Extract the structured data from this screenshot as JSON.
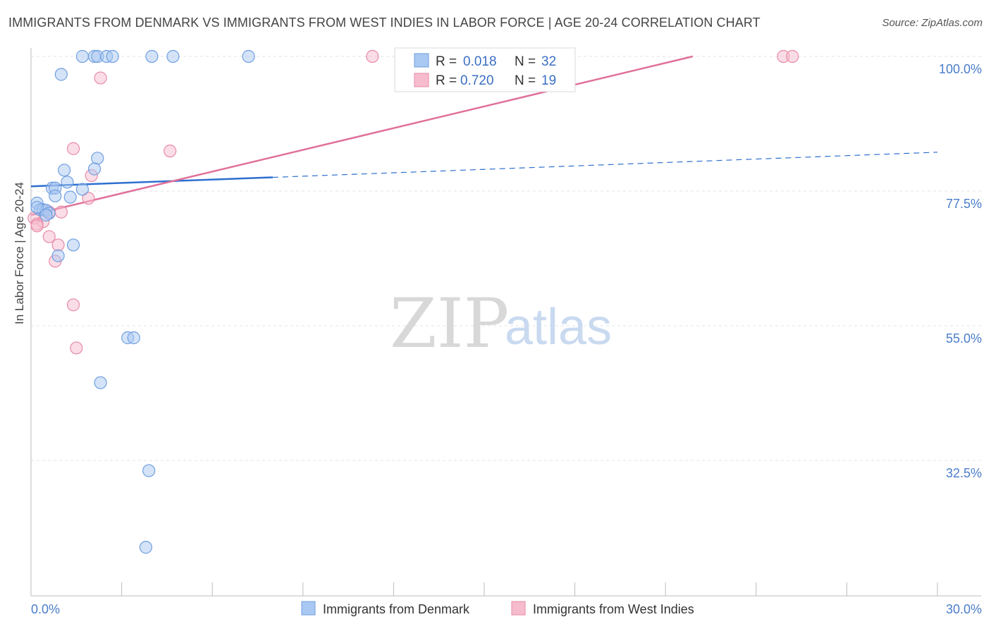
{
  "title": "IMMIGRANTS FROM DENMARK VS IMMIGRANTS FROM WEST INDIES IN LABOR FORCE | AGE 20-24 CORRELATION CHART",
  "source": "Source: ZipAtlas.com",
  "watermark": {
    "zip": "ZIP",
    "atlas": "atlas"
  },
  "legend_top": [
    {
      "r_label": "R =",
      "r_value": "0.018",
      "n_label": "N =",
      "n_value": "32"
    },
    {
      "r_label": "R =",
      "r_value": "0.720",
      "n_label": "N =",
      "n_value": "19"
    }
  ],
  "colors": {
    "denmark_fill": "#a9c8f2",
    "denmark_stroke": "#6f9fe0",
    "denmark_line": "#2e6fd0",
    "westindies_fill": "#f6bccd",
    "westindies_stroke": "#e98aa8",
    "westindies_line": "#e0709a",
    "tick": "#4a7dc9"
  },
  "chart_data": {
    "type": "scatter",
    "title": "IMMIGRANTS FROM DENMARK VS IMMIGRANTS FROM WEST INDIES IN LABOR FORCE | AGE 20-24 CORRELATION CHART",
    "xlabel": "",
    "ylabel": "In Labor Force | Age 20-24",
    "xlim": [
      0,
      30
    ],
    "ylim": [
      20,
      100
    ],
    "x_tick_labels": [
      "0.0%",
      "30.0%"
    ],
    "y_ticks": [
      {
        "value": 100,
        "label": "100.0%"
      },
      {
        "value": 77.5,
        "label": "77.5%"
      },
      {
        "value": 55,
        "label": "55.0%"
      },
      {
        "value": 32.5,
        "label": "32.5%"
      }
    ],
    "grid": true,
    "legend_position": "top-center",
    "series": [
      {
        "name": "Immigrants from Denmark",
        "r": 0.018,
        "n": 32,
        "points": [
          [
            1.0,
            99.0
          ],
          [
            1.7,
            102.0
          ],
          [
            2.1,
            102.0
          ],
          [
            2.2,
            102.0
          ],
          [
            2.5,
            102.0
          ],
          [
            2.7,
            102.0
          ],
          [
            4.0,
            102.0
          ],
          [
            4.7,
            102.0
          ],
          [
            7.2,
            102.0
          ],
          [
            2.2,
            85.0
          ],
          [
            1.1,
            83.0
          ],
          [
            2.1,
            83.2
          ],
          [
            1.2,
            81.0
          ],
          [
            0.7,
            80.0
          ],
          [
            0.8,
            80.0
          ],
          [
            1.7,
            79.8
          ],
          [
            0.8,
            78.7
          ],
          [
            1.3,
            78.5
          ],
          [
            0.2,
            77.5
          ],
          [
            0.3,
            76.4
          ],
          [
            0.4,
            76.4
          ],
          [
            0.5,
            76.3
          ],
          [
            0.2,
            76.8
          ],
          [
            0.6,
            75.8
          ],
          [
            0.5,
            75.5
          ],
          [
            1.4,
            70.5
          ],
          [
            0.9,
            68.7
          ],
          [
            3.2,
            55.0
          ],
          [
            3.4,
            55.0
          ],
          [
            2.3,
            47.5
          ],
          [
            3.9,
            32.8
          ],
          [
            3.8,
            20.0
          ]
        ]
      },
      {
        "name": "Immigrants from West Indies",
        "r": 0.72,
        "n": 19,
        "points": [
          [
            11.3,
            102.0
          ],
          [
            24.9,
            102.0
          ],
          [
            25.2,
            102.0
          ],
          [
            2.3,
            98.4
          ],
          [
            1.4,
            86.6
          ],
          [
            4.6,
            86.2
          ],
          [
            2.0,
            82.1
          ],
          [
            1.9,
            78.3
          ],
          [
            0.6,
            76.0
          ],
          [
            1.0,
            76.0
          ],
          [
            0.1,
            75.0
          ],
          [
            0.4,
            74.4
          ],
          [
            0.2,
            74.0
          ],
          [
            0.2,
            73.7
          ],
          [
            0.6,
            71.9
          ],
          [
            0.9,
            70.5
          ],
          [
            0.8,
            67.8
          ],
          [
            1.4,
            60.5
          ],
          [
            1.5,
            53.3
          ]
        ]
      }
    ],
    "trendlines": [
      {
        "series": "Immigrants from Denmark",
        "solid": [
          [
            0,
            80.3
          ],
          [
            8.0,
            81.8
          ]
        ],
        "dashed": [
          [
            8.0,
            81.8
          ],
          [
            30.0,
            86.0
          ]
        ]
      },
      {
        "series": "Immigrants from West Indies",
        "solid": [
          [
            0,
            75.5
          ],
          [
            21.9,
            102.0
          ]
        ]
      }
    ]
  }
}
